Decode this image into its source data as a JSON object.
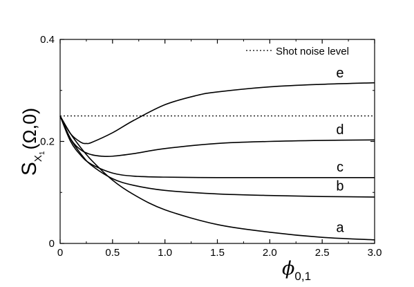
{
  "chart_data": {
    "type": "line",
    "xlabel": {
      "symbol": "ϕ",
      "subscript": "0,1"
    },
    "ylabel": {
      "main": "S",
      "subscript": "X",
      "sub_subscript": "1",
      "argument": "(Ω,0)"
    },
    "xlim": [
      0,
      3.0
    ],
    "ylim": [
      0,
      0.4
    ],
    "x_ticks": [
      0,
      0.5,
      1.0,
      1.5,
      2.0,
      2.5,
      3.0
    ],
    "x_tick_labels": [
      "0",
      "0.5",
      "1.0",
      "1.5",
      "2.0",
      "2.5",
      "3.0"
    ],
    "y_ticks": [
      0,
      0.2,
      0.4
    ],
    "y_tick_labels": [
      "0",
      "0.2",
      "0.4"
    ],
    "grid": false,
    "legend": {
      "position": "top-right",
      "entries": [
        {
          "label": "Shot noise level",
          "style": "dotted"
        }
      ]
    },
    "reference_line": {
      "y": 0.25,
      "style": "dotted"
    },
    "series": [
      {
        "label": "a",
        "x": [
          0,
          0.1,
          0.2,
          0.3,
          0.5,
          0.7,
          1.0,
          1.5,
          2.0,
          2.5,
          3.0
        ],
        "y": [
          0.25,
          0.215,
          0.187,
          0.163,
          0.124,
          0.096,
          0.066,
          0.037,
          0.022,
          0.012,
          0.007
        ]
      },
      {
        "label": "b",
        "x": [
          0,
          0.1,
          0.2,
          0.3,
          0.5,
          0.7,
          1.0,
          1.5,
          2.0,
          2.5,
          3.0
        ],
        "y": [
          0.25,
          0.205,
          0.175,
          0.153,
          0.127,
          0.114,
          0.104,
          0.097,
          0.094,
          0.092,
          0.091
        ]
      },
      {
        "label": "c",
        "x": [
          0,
          0.1,
          0.2,
          0.3,
          0.5,
          0.7,
          1.0,
          1.5,
          2.0,
          2.5,
          3.0
        ],
        "y": [
          0.25,
          0.2,
          0.172,
          0.155,
          0.138,
          0.132,
          0.13,
          0.129,
          0.129,
          0.129,
          0.129
        ]
      },
      {
        "label": "d",
        "x": [
          0,
          0.1,
          0.2,
          0.3,
          0.4,
          0.5,
          0.7,
          1.0,
          1.5,
          2.0,
          2.5,
          3.0
        ],
        "y": [
          0.25,
          0.205,
          0.183,
          0.174,
          0.171,
          0.171,
          0.176,
          0.186,
          0.196,
          0.2,
          0.202,
          0.203
        ]
      },
      {
        "label": "e",
        "x": [
          0,
          0.1,
          0.2,
          0.25,
          0.3,
          0.5,
          0.7,
          1.0,
          1.3,
          1.5,
          2.0,
          2.5,
          3.0
        ],
        "y": [
          0.25,
          0.215,
          0.198,
          0.196,
          0.198,
          0.217,
          0.241,
          0.272,
          0.29,
          0.297,
          0.307,
          0.312,
          0.315
        ]
      }
    ]
  }
}
